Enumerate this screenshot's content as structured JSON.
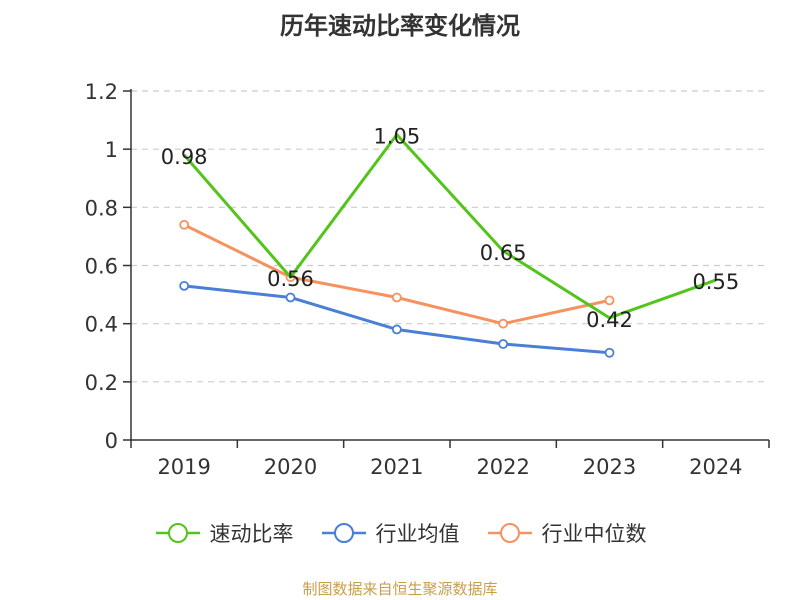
{
  "chart_data": {
    "type": "line",
    "title": "历年速动比率变化情况",
    "categories": [
      "2019",
      "2020",
      "2021",
      "2022",
      "2023",
      "2024"
    ],
    "ylim": [
      0,
      1.2
    ],
    "yticks": [
      "0",
      "0.2",
      "0.4",
      "0.6",
      "0.8",
      "1",
      "1.2"
    ],
    "grid": true,
    "legend_position": "bottom",
    "series": [
      {
        "name": "速动比率",
        "color": "#52c41a",
        "values": [
          0.98,
          0.56,
          1.05,
          0.65,
          0.42,
          0.55
        ],
        "labels": [
          "0.98",
          "0.56",
          "1.05",
          "0.65",
          "0.42",
          "0.55"
        ]
      },
      {
        "name": "行业均值",
        "color": "#4a7fd6",
        "values": [
          0.53,
          0.49,
          0.38,
          0.33,
          0.3,
          null
        ]
      },
      {
        "name": "行业中位数",
        "color": "#f5925e",
        "values": [
          0.74,
          0.56,
          0.49,
          0.4,
          0.48,
          null
        ]
      }
    ]
  },
  "source": "制图数据来自恒生聚源数据库"
}
